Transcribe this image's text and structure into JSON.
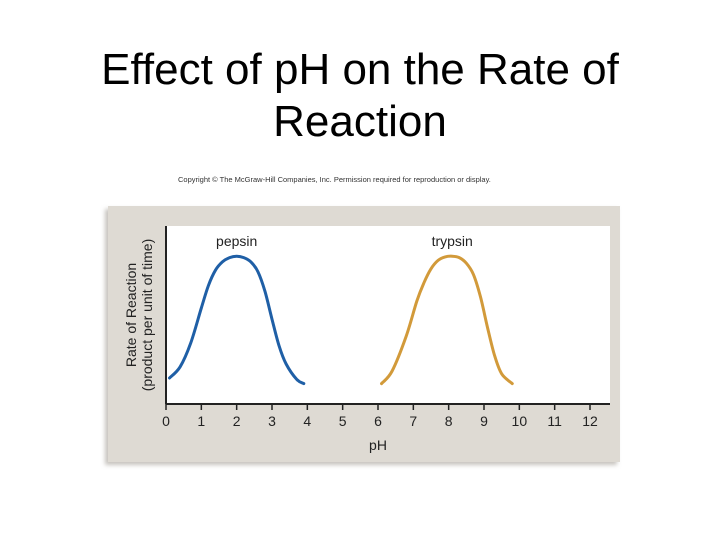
{
  "slide": {
    "title_line1": "Effect of pH on the Rate of",
    "title_line2": "Reaction",
    "copyright": "Copyright © The McGraw-Hill Companies, Inc. Permission required for reproduction or display."
  },
  "colors": {
    "panel": "#dedad3",
    "plot_bg": "#ffffff",
    "axis": "#222222",
    "pepsin": "#1f5fa6",
    "trypsin": "#d29a3a"
  },
  "chart_data": {
    "type": "line",
    "title": "",
    "xlabel": "pH",
    "ylabel_line1": "Rate of Reaction",
    "ylabel_line2": "(product per unit of time)",
    "xlim": [
      0,
      12.3
    ],
    "ylim": [
      0,
      1
    ],
    "xticks": [
      0,
      1,
      2,
      3,
      4,
      5,
      6,
      7,
      8,
      9,
      10,
      11,
      12
    ],
    "xtick_labels": [
      "0",
      "1",
      "2",
      "3",
      "4",
      "5",
      "6",
      "7",
      "8",
      "9",
      "10",
      "11",
      "12"
    ],
    "grid": false,
    "series": [
      {
        "name": "pepsin",
        "color": "#1f5fa6",
        "x": [
          0.1,
          0.4,
          0.7,
          1.0,
          1.2,
          1.4,
          1.6,
          1.8,
          2.0,
          2.2,
          2.4,
          2.6,
          2.8,
          3.0,
          3.2,
          3.4,
          3.7,
          3.9
        ],
        "y": [
          0.1,
          0.18,
          0.35,
          0.6,
          0.76,
          0.87,
          0.93,
          0.96,
          0.97,
          0.96,
          0.93,
          0.86,
          0.72,
          0.52,
          0.33,
          0.2,
          0.09,
          0.06
        ]
      },
      {
        "name": "trypsin",
        "color": "#d29a3a",
        "x": [
          6.1,
          6.4,
          6.8,
          7.1,
          7.3,
          7.5,
          7.7,
          7.9,
          8.1,
          8.3,
          8.5,
          8.7,
          8.9,
          9.1,
          9.3,
          9.5,
          9.8
        ],
        "y": [
          0.06,
          0.15,
          0.4,
          0.65,
          0.78,
          0.88,
          0.94,
          0.965,
          0.97,
          0.96,
          0.92,
          0.84,
          0.68,
          0.46,
          0.26,
          0.13,
          0.06
        ]
      }
    ]
  }
}
